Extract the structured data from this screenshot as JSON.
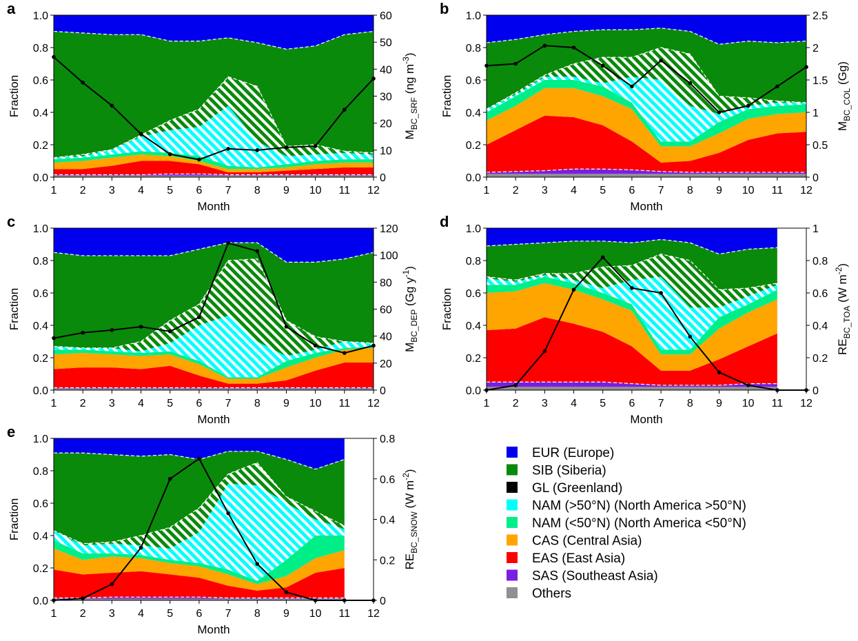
{
  "legend": [
    {
      "label": "EUR (Europe)",
      "color": "#0000ee"
    },
    {
      "label": "SIB (Siberia)",
      "color": "#0a8a0a"
    },
    {
      "label": "GL (Greenland)",
      "color": "#000000"
    },
    {
      "label": "NAM (>50°N) (North America >50°N)",
      "color": "#00ffff"
    },
    {
      "label": "NAM (<50°N) (North America <50°N)",
      "color": "#00ee88"
    },
    {
      "label": "CAS (Central Asia)",
      "color": "#ffa500"
    },
    {
      "label": "EAS (East Asia)",
      "color": "#ff0000"
    },
    {
      "label": "SAS (Southeast Asia)",
      "color": "#7a1fe0"
    },
    {
      "label": "Others",
      "color": "#909090"
    }
  ],
  "chart_data": [
    {
      "letter": "a",
      "type": "area",
      "xlabel": "Month",
      "ylabel": "Fraction",
      "y2label": {
        "base": "M",
        "sub": "BC_SRF",
        "unit": " (ng m",
        "sup": "-3",
        "close": ")"
      },
      "x": [
        1,
        2,
        3,
        4,
        5,
        6,
        7,
        8,
        9,
        10,
        11,
        12
      ],
      "xlim": [
        1,
        12
      ],
      "ylim": [
        0,
        1
      ],
      "y2lim": [
        0,
        60
      ],
      "y2ticks": [
        0,
        10,
        20,
        30,
        40,
        50,
        60
      ],
      "cumulative": [
        [
          0.01,
          0.01,
          0.01,
          0.01,
          0.01,
          0.01,
          0.01,
          0.01,
          0.01,
          0.01,
          0.01,
          0.01
        ],
        [
          0.015,
          0.015,
          0.015,
          0.015,
          0.02,
          0.02,
          0.015,
          0.015,
          0.015,
          0.015,
          0.015,
          0.015
        ],
        [
          0.05,
          0.05,
          0.07,
          0.1,
          0.1,
          0.08,
          0.03,
          0.03,
          0.04,
          0.05,
          0.06,
          0.06
        ],
        [
          0.09,
          0.1,
          0.12,
          0.14,
          0.13,
          0.1,
          0.05,
          0.05,
          0.06,
          0.08,
          0.09,
          0.09
        ],
        [
          0.11,
          0.12,
          0.14,
          0.16,
          0.15,
          0.13,
          0.07,
          0.06,
          0.08,
          0.1,
          0.11,
          0.11
        ],
        [
          0.12,
          0.13,
          0.17,
          0.25,
          0.29,
          0.31,
          0.44,
          0.22,
          0.13,
          0.14,
          0.15,
          0.14
        ],
        [
          0.12,
          0.14,
          0.17,
          0.26,
          0.35,
          0.42,
          0.62,
          0.56,
          0.19,
          0.2,
          0.16,
          0.15
        ],
        [
          0.9,
          0.89,
          0.88,
          0.88,
          0.84,
          0.84,
          0.86,
          0.83,
          0.79,
          0.81,
          0.88,
          0.9
        ],
        [
          1,
          1,
          1,
          1,
          1,
          1,
          1,
          1,
          1,
          1,
          1,
          1
        ]
      ],
      "line": [
        44.5,
        35,
        26.5,
        16,
        8.5,
        6.5,
        10.5,
        10,
        11,
        11.5,
        25,
        36.5
      ]
    },
    {
      "letter": "b",
      "type": "area",
      "xlabel": "Month",
      "ylabel": "Fraction",
      "y2label": {
        "base": "M",
        "sub": "BC_COL",
        "unit": " (Gg)",
        "sup": "",
        "close": ""
      },
      "x": [
        1,
        2,
        3,
        4,
        5,
        6,
        7,
        8,
        9,
        10,
        11,
        12
      ],
      "xlim": [
        1,
        12
      ],
      "ylim": [
        0,
        1
      ],
      "y2lim": [
        0,
        2.5
      ],
      "y2ticks": [
        0,
        0.5,
        1,
        1.5,
        2,
        2.5
      ],
      "cumulative": [
        [
          0.02,
          0.02,
          0.02,
          0.02,
          0.02,
          0.02,
          0.02,
          0.02,
          0.02,
          0.02,
          0.02,
          0.02
        ],
        [
          0.03,
          0.035,
          0.04,
          0.05,
          0.05,
          0.045,
          0.035,
          0.03,
          0.03,
          0.03,
          0.03,
          0.03
        ],
        [
          0.2,
          0.29,
          0.38,
          0.37,
          0.32,
          0.22,
          0.09,
          0.1,
          0.15,
          0.23,
          0.27,
          0.28
        ],
        [
          0.35,
          0.44,
          0.55,
          0.55,
          0.5,
          0.42,
          0.19,
          0.19,
          0.27,
          0.36,
          0.39,
          0.4
        ],
        [
          0.4,
          0.5,
          0.6,
          0.6,
          0.56,
          0.46,
          0.22,
          0.22,
          0.34,
          0.42,
          0.44,
          0.45
        ],
        [
          0.42,
          0.51,
          0.62,
          0.62,
          0.58,
          0.62,
          0.6,
          0.44,
          0.39,
          0.44,
          0.46,
          0.46
        ],
        [
          0.42,
          0.52,
          0.63,
          0.7,
          0.74,
          0.74,
          0.8,
          0.76,
          0.5,
          0.49,
          0.47,
          0.46
        ],
        [
          0.83,
          0.85,
          0.88,
          0.9,
          0.91,
          0.91,
          0.92,
          0.9,
          0.82,
          0.84,
          0.83,
          0.84
        ],
        [
          1,
          1,
          1,
          1,
          1,
          1,
          1,
          1,
          1,
          1,
          1,
          1
        ]
      ],
      "line": [
        1.72,
        1.75,
        2.03,
        2.0,
        1.72,
        1.4,
        1.8,
        1.45,
        1.0,
        1.1,
        1.4,
        1.7
      ]
    },
    {
      "letter": "c",
      "type": "area",
      "xlabel": "Month",
      "ylabel": "Fraction",
      "y2label": {
        "base": "M",
        "sub": "BC_DEP",
        "unit": " (Gg y",
        "sup": "-1",
        "close": ")"
      },
      "x": [
        1,
        2,
        3,
        4,
        5,
        6,
        7,
        8,
        9,
        10,
        11,
        12
      ],
      "xlim": [
        1,
        12
      ],
      "ylim": [
        0,
        1
      ],
      "y2lim": [
        0,
        120
      ],
      "y2ticks": [
        0,
        20,
        40,
        60,
        80,
        100,
        120
      ],
      "cumulative": [
        [
          0.01,
          0.01,
          0.01,
          0.01,
          0.01,
          0.01,
          0.01,
          0.01,
          0.01,
          0.01,
          0.01,
          0.01
        ],
        [
          0.015,
          0.015,
          0.015,
          0.015,
          0.015,
          0.015,
          0.015,
          0.015,
          0.015,
          0.015,
          0.015,
          0.015
        ],
        [
          0.13,
          0.14,
          0.14,
          0.13,
          0.15,
          0.09,
          0.04,
          0.04,
          0.06,
          0.12,
          0.17,
          0.17
        ],
        [
          0.22,
          0.23,
          0.22,
          0.21,
          0.22,
          0.16,
          0.07,
          0.07,
          0.14,
          0.2,
          0.25,
          0.26
        ],
        [
          0.25,
          0.25,
          0.24,
          0.23,
          0.24,
          0.18,
          0.08,
          0.08,
          0.18,
          0.23,
          0.26,
          0.27
        ],
        [
          0.27,
          0.26,
          0.26,
          0.24,
          0.29,
          0.4,
          0.46,
          0.3,
          0.21,
          0.25,
          0.3,
          0.29
        ],
        [
          0.27,
          0.26,
          0.26,
          0.3,
          0.43,
          0.53,
          0.8,
          0.81,
          0.43,
          0.33,
          0.3,
          0.29
        ],
        [
          0.85,
          0.83,
          0.83,
          0.83,
          0.83,
          0.87,
          0.91,
          0.91,
          0.79,
          0.79,
          0.81,
          0.85
        ],
        [
          1,
          1,
          1,
          1,
          1,
          1,
          1,
          1,
          1,
          1,
          1,
          1
        ]
      ],
      "line": [
        38.5,
        42.5,
        44.5,
        47,
        43.5,
        54,
        109,
        103,
        47,
        33,
        27.5,
        33
      ]
    },
    {
      "letter": "d",
      "type": "area",
      "xlabel": "Month",
      "ylabel": "Fraction",
      "y2label": {
        "base": "RE",
        "sub": "BC_TOA",
        "unit": " (W m",
        "sup": "-2",
        "close": ")"
      },
      "x": [
        1,
        2,
        3,
        4,
        5,
        6,
        7,
        8,
        9,
        10,
        11,
        12
      ],
      "xlim": [
        1,
        12
      ],
      "ylim": [
        0,
        1
      ],
      "y2lim": [
        0,
        1
      ],
      "y2ticks": [
        0,
        0.2,
        0.4,
        0.6,
        0.8,
        1
      ],
      "area_end": 11,
      "cumulative": [
        [
          0.02,
          0.02,
          0.02,
          0.02,
          0.02,
          0.02,
          0.02,
          0.02,
          0.02,
          0.02,
          0.02
        ],
        [
          0.05,
          0.05,
          0.05,
          0.05,
          0.05,
          0.04,
          0.03,
          0.03,
          0.03,
          0.04,
          0.04
        ],
        [
          0.37,
          0.38,
          0.45,
          0.41,
          0.36,
          0.27,
          0.12,
          0.12,
          0.19,
          0.27,
          0.35
        ],
        [
          0.6,
          0.61,
          0.66,
          0.62,
          0.56,
          0.49,
          0.22,
          0.22,
          0.38,
          0.48,
          0.56
        ],
        [
          0.65,
          0.65,
          0.7,
          0.66,
          0.6,
          0.53,
          0.25,
          0.25,
          0.45,
          0.53,
          0.62
        ],
        [
          0.69,
          0.67,
          0.71,
          0.68,
          0.63,
          0.68,
          0.7,
          0.51,
          0.51,
          0.58,
          0.65
        ],
        [
          0.7,
          0.68,
          0.72,
          0.72,
          0.76,
          0.77,
          0.84,
          0.8,
          0.62,
          0.63,
          0.66
        ],
        [
          0.89,
          0.9,
          0.91,
          0.92,
          0.92,
          0.91,
          0.93,
          0.91,
          0.84,
          0.87,
          0.88
        ],
        [
          1,
          1,
          1,
          1,
          1,
          1,
          1,
          1,
          1,
          1,
          1
        ]
      ],
      "line": [
        0,
        0.03,
        0.24,
        0.62,
        0.82,
        0.63,
        0.6,
        0.33,
        0.11,
        0.03,
        0,
        0
      ]
    },
    {
      "letter": "e",
      "type": "area",
      "xlabel": "Month",
      "ylabel": "Fraction",
      "y2label": {
        "base": "RE",
        "sub": "BC_SNOW",
        "unit": " (W m",
        "sup": "-2",
        "close": ")"
      },
      "x": [
        1,
        2,
        3,
        4,
        5,
        6,
        7,
        8,
        9,
        10,
        11,
        12
      ],
      "xlim": [
        1,
        12
      ],
      "ylim": [
        0,
        1
      ],
      "y2lim": [
        0,
        0.8
      ],
      "y2ticks": [
        0,
        0.2,
        0.4,
        0.6,
        0.8
      ],
      "area_end": 11,
      "cumulative": [
        [
          0.01,
          0.01,
          0.01,
          0.01,
          0.01,
          0.01,
          0.01,
          0.01,
          0.01,
          0.01,
          0.01
        ],
        [
          0.015,
          0.015,
          0.02,
          0.02,
          0.02,
          0.02,
          0.015,
          0.015,
          0.015,
          0.015,
          0.015
        ],
        [
          0.19,
          0.16,
          0.17,
          0.18,
          0.16,
          0.14,
          0.09,
          0.06,
          0.08,
          0.17,
          0.2
        ],
        [
          0.32,
          0.25,
          0.27,
          0.26,
          0.23,
          0.21,
          0.16,
          0.1,
          0.15,
          0.26,
          0.31
        ],
        [
          0.37,
          0.29,
          0.29,
          0.28,
          0.25,
          0.23,
          0.19,
          0.12,
          0.25,
          0.4,
          0.4
        ],
        [
          0.43,
          0.34,
          0.35,
          0.34,
          0.32,
          0.42,
          0.72,
          0.71,
          0.6,
          0.5,
          0.44
        ],
        [
          0.43,
          0.35,
          0.36,
          0.4,
          0.45,
          0.57,
          0.78,
          0.85,
          0.64,
          0.55,
          0.46
        ],
        [
          0.91,
          0.91,
          0.9,
          0.89,
          0.9,
          0.87,
          0.92,
          0.92,
          0.87,
          0.81,
          0.87
        ],
        [
          1,
          1,
          1,
          1,
          1,
          1,
          1,
          1,
          1,
          1,
          1
        ]
      ],
      "line": [
        0,
        0.01,
        0.08,
        0.26,
        0.6,
        0.7,
        0.43,
        0.18,
        0.04,
        0,
        0,
        0
      ]
    }
  ]
}
